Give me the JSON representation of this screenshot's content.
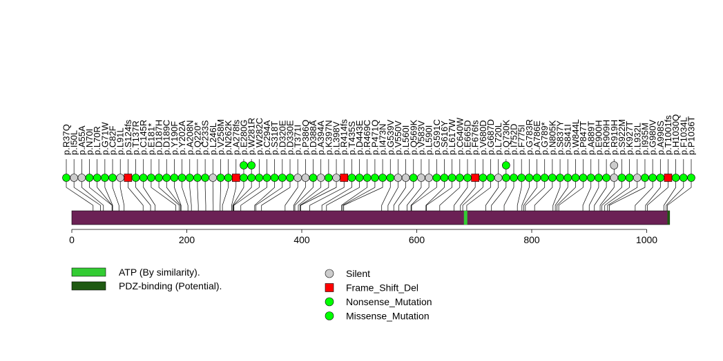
{
  "chart_data": {
    "type": "lollipop",
    "axis": {
      "min": 0,
      "max": 1040,
      "ticks": [
        0,
        200,
        400,
        600,
        800,
        1000
      ]
    },
    "protein_length": 1040,
    "colors": {
      "protein": "#6b2155",
      "ATP (By similarity).": "#33cc33",
      "PDZ-binding (Potential).": "#1f5a12",
      "Silent": "#cccccc",
      "Frame_Shift_Del": "#ff0000",
      "Nonsense_Mutation": "#00ff00",
      "Missense_Mutation": "#00ff00"
    },
    "domains": [
      {
        "name": "ATP (By similarity).",
        "start": 682,
        "end": 688
      },
      {
        "name": "PDZ-binding (Potential).",
        "start": 1036,
        "end": 1040
      }
    ],
    "domain_legend": [
      "ATP (By similarity).",
      "PDZ-binding (Potential)."
    ],
    "mutation_legend": [
      "Silent",
      "Frame_Shift_Del",
      "Nonsense_Mutation",
      "Missense_Mutation"
    ],
    "mutations": [
      {
        "label": "p.R37Q",
        "position": 37,
        "type": "Missense_Mutation",
        "count": 1
      },
      {
        "label": "p.I50L",
        "position": 50,
        "type": "Silent",
        "count": 1
      },
      {
        "label": "p.A55A",
        "position": 55,
        "type": "Silent",
        "count": 1
      },
      {
        "label": "p.N70I",
        "position": 70,
        "type": "Missense_Mutation",
        "count": 1
      },
      {
        "label": "p.L70R",
        "position": 70,
        "type": "Missense_Mutation",
        "count": 1
      },
      {
        "label": "p.G71W",
        "position": 71,
        "type": "Missense_Mutation",
        "count": 1
      },
      {
        "label": "p.C82F",
        "position": 82,
        "type": "Missense_Mutation",
        "count": 1
      },
      {
        "label": "p.L91L",
        "position": 91,
        "type": "Silent",
        "count": 1
      },
      {
        "label": "p.S124fs",
        "position": 124,
        "type": "Frame_Shift_Del",
        "count": 1
      },
      {
        "label": "p.T137R",
        "position": 137,
        "type": "Missense_Mutation",
        "count": 1
      },
      {
        "label": "p.C145R",
        "position": 145,
        "type": "Missense_Mutation",
        "count": 1
      },
      {
        "label": "p.E181*",
        "position": 181,
        "type": "Nonsense_Mutation",
        "count": 1
      },
      {
        "label": "p.D187H",
        "position": 187,
        "type": "Missense_Mutation",
        "count": 1
      },
      {
        "label": "p.D189C",
        "position": 189,
        "type": "Missense_Mutation",
        "count": 1
      },
      {
        "label": "p.Y190F",
        "position": 190,
        "type": "Missense_Mutation",
        "count": 1
      },
      {
        "label": "p.Y202A",
        "position": 202,
        "type": "Missense_Mutation",
        "count": 1
      },
      {
        "label": "p.A208N",
        "position": 208,
        "type": "Missense_Mutation",
        "count": 1
      },
      {
        "label": "p.Q220*",
        "position": 220,
        "type": "Nonsense_Mutation",
        "count": 1
      },
      {
        "label": "p.C233S",
        "position": 233,
        "type": "Missense_Mutation",
        "count": 1
      },
      {
        "label": "p.L246L",
        "position": 246,
        "type": "Silent",
        "count": 1
      },
      {
        "label": "p.V258M",
        "position": 258,
        "type": "Missense_Mutation",
        "count": 1
      },
      {
        "label": "p.N262K",
        "position": 262,
        "type": "Missense_Mutation",
        "count": 1
      },
      {
        "label": "p.A278fs",
        "position": 278,
        "type": "Frame_Shift_Del",
        "count": 1
      },
      {
        "label": "p.E280G",
        "position": 280,
        "type": "Missense_Mutation",
        "count": 2
      },
      {
        "label": "p.W281R",
        "position": 281,
        "type": "Missense_Mutation",
        "count": 2
      },
      {
        "label": "p.W282C",
        "position": 282,
        "type": "Missense_Mutation",
        "count": 1
      },
      {
        "label": "p.C294A",
        "position": 294,
        "type": "Missense_Mutation",
        "count": 1
      },
      {
        "label": "p.S318T",
        "position": 318,
        "type": "Missense_Mutation",
        "count": 1
      },
      {
        "label": "p.D320E",
        "position": 320,
        "type": "Missense_Mutation",
        "count": 1
      },
      {
        "label": "p.D330E",
        "position": 330,
        "type": "Missense_Mutation",
        "count": 1
      },
      {
        "label": "p.T371I",
        "position": 371,
        "type": "Silent",
        "count": 1
      },
      {
        "label": "p.P386Q",
        "position": 386,
        "type": "Silent",
        "count": 1
      },
      {
        "label": "p.D388A",
        "position": 388,
        "type": "Missense_Mutation",
        "count": 1
      },
      {
        "label": "p.A394A",
        "position": 394,
        "type": "Silent",
        "count": 1
      },
      {
        "label": "p.K397N",
        "position": 397,
        "type": "Missense_Mutation",
        "count": 1
      },
      {
        "label": "p.L398V",
        "position": 398,
        "type": "Silent",
        "count": 1
      },
      {
        "label": "p.R414fs",
        "position": 414,
        "type": "Frame_Shift_Del",
        "count": 1
      },
      {
        "label": "p.T435S",
        "position": 435,
        "type": "Missense_Mutation",
        "count": 1
      },
      {
        "label": "p.D443E",
        "position": 443,
        "type": "Missense_Mutation",
        "count": 1
      },
      {
        "label": "p.R469C",
        "position": 469,
        "type": "Missense_Mutation",
        "count": 1
      },
      {
        "label": "p.P471Q",
        "position": 471,
        "type": "Missense_Mutation",
        "count": 1
      },
      {
        "label": "p.I473N",
        "position": 473,
        "type": "Missense_Mutation",
        "count": 1
      },
      {
        "label": "p.G539V",
        "position": 539,
        "type": "Missense_Mutation",
        "count": 1
      },
      {
        "label": "p.V550V",
        "position": 550,
        "type": "Silent",
        "count": 1
      },
      {
        "label": "p.L560I",
        "position": 560,
        "type": "Silent",
        "count": 1
      },
      {
        "label": "p.Q569K",
        "position": 569,
        "type": "Missense_Mutation",
        "count": 1
      },
      {
        "label": "p.V583V",
        "position": 583,
        "type": "Silent",
        "count": 1
      },
      {
        "label": "p.L590I",
        "position": 590,
        "type": "Silent",
        "count": 1
      },
      {
        "label": "p.G591C",
        "position": 591,
        "type": "Missense_Mutation",
        "count": 1
      },
      {
        "label": "p.S616Y",
        "position": 616,
        "type": "Missense_Mutation",
        "count": 1
      },
      {
        "label": "p.L617W",
        "position": 617,
        "type": "Missense_Mutation",
        "count": 1
      },
      {
        "label": "p.C640W",
        "position": 640,
        "type": "Missense_Mutation",
        "count": 1
      },
      {
        "label": "p.E665D",
        "position": 665,
        "type": "Missense_Mutation",
        "count": 1
      },
      {
        "label": "p.F676fs",
        "position": 676,
        "type": "Frame_Shift_Del",
        "count": 1
      },
      {
        "label": "p.V680D",
        "position": 680,
        "type": "Missense_Mutation",
        "count": 1
      },
      {
        "label": "p.G687D",
        "position": 687,
        "type": "Missense_Mutation",
        "count": 1
      },
      {
        "label": "p.L720L",
        "position": 720,
        "type": "Silent",
        "count": 1
      },
      {
        "label": "p.Q730K",
        "position": 730,
        "type": "Missense_Mutation",
        "count": 2
      },
      {
        "label": "p.I752D",
        "position": 752,
        "type": "Missense_Mutation",
        "count": 1
      },
      {
        "label": "p.F775I",
        "position": 775,
        "type": "Missense_Mutation",
        "count": 1
      },
      {
        "label": "p.G783R",
        "position": 783,
        "type": "Missense_Mutation",
        "count": 1
      },
      {
        "label": "p.A786E",
        "position": 786,
        "type": "Missense_Mutation",
        "count": 1
      },
      {
        "label": "p.G789*",
        "position": 789,
        "type": "Nonsense_Mutation",
        "count": 1
      },
      {
        "label": "p.N805K",
        "position": 805,
        "type": "Missense_Mutation",
        "count": 1
      },
      {
        "label": "p.S837Y",
        "position": 837,
        "type": "Missense_Mutation",
        "count": 1
      },
      {
        "label": "p.S841I",
        "position": 841,
        "type": "Missense_Mutation",
        "count": 1
      },
      {
        "label": "p.W844L",
        "position": 844,
        "type": "Missense_Mutation",
        "count": 1
      },
      {
        "label": "p.P847T",
        "position": 847,
        "type": "Missense_Mutation",
        "count": 1
      },
      {
        "label": "p.A889T",
        "position": 889,
        "type": "Missense_Mutation",
        "count": 1
      },
      {
        "label": "p.E900H",
        "position": 900,
        "type": "Missense_Mutation",
        "count": 1
      },
      {
        "label": "p.R909H",
        "position": 909,
        "type": "Missense_Mutation",
        "count": 1
      },
      {
        "label": "p.R919H",
        "position": 919,
        "type": "Silent",
        "count": 2
      },
      {
        "label": "p.S922M",
        "position": 922,
        "type": "Missense_Mutation",
        "count": 1
      },
      {
        "label": "p.K927T",
        "position": 927,
        "type": "Missense_Mutation",
        "count": 1
      },
      {
        "label": "p.L932L",
        "position": 932,
        "type": "Silent",
        "count": 1
      },
      {
        "label": "p.I935M",
        "position": 935,
        "type": "Missense_Mutation",
        "count": 1
      },
      {
        "label": "p.G980V",
        "position": 980,
        "type": "Missense_Mutation",
        "count": 1
      },
      {
        "label": "p.A998S",
        "position": 998,
        "type": "Missense_Mutation",
        "count": 1
      },
      {
        "label": "p.T1001fs",
        "position": 1001,
        "type": "Frame_Shift_Del",
        "count": 1
      },
      {
        "label": "p.H1030Q",
        "position": 1030,
        "type": "Missense_Mutation",
        "count": 1
      },
      {
        "label": "p.F1034L",
        "position": 1034,
        "type": "Missense_Mutation",
        "count": 1
      },
      {
        "label": "p.P1036T",
        "position": 1036,
        "type": "Missense_Mutation",
        "count": 1
      }
    ]
  }
}
